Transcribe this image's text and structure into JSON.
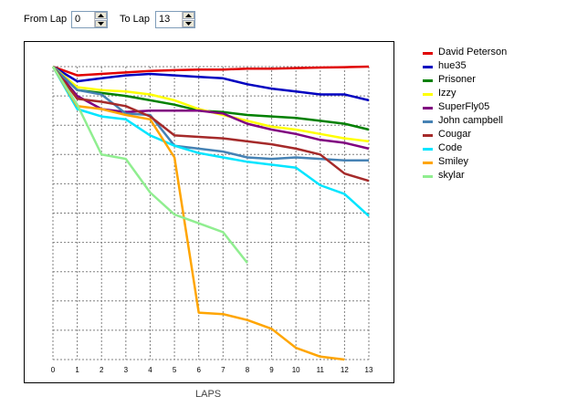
{
  "controls": {
    "from_label": "From Lap",
    "from_value": "0",
    "to_label": "To Lap",
    "to_value": "13"
  },
  "chart_data": {
    "type": "line",
    "xlabel": "LAPS",
    "ylabel": "",
    "title": "",
    "xlim": [
      0,
      13
    ],
    "ylim": [
      0,
      10
    ],
    "x_ticks": [
      "0",
      "1",
      "2",
      "3",
      "4",
      "5",
      "6",
      "7",
      "8",
      "9",
      "10",
      "11",
      "12",
      "13"
    ],
    "grid": true,
    "legend_position": "right",
    "series": [
      {
        "name": "David Peterson",
        "color": "#e00000",
        "x": [
          0,
          1,
          2,
          3,
          4,
          5,
          6,
          7,
          8,
          9,
          10,
          11,
          12,
          13
        ],
        "y": [
          10,
          9.7,
          9.75,
          9.8,
          9.85,
          9.88,
          9.9,
          9.9,
          9.93,
          9.93,
          9.95,
          9.97,
          9.98,
          10
        ]
      },
      {
        "name": "hue35",
        "color": "#0000c0",
        "x": [
          0,
          1,
          2,
          3,
          4,
          5,
          6,
          7,
          8,
          9,
          10,
          11,
          12,
          13
        ],
        "y": [
          10,
          9.5,
          9.6,
          9.7,
          9.75,
          9.7,
          9.65,
          9.6,
          9.4,
          9.25,
          9.15,
          9.05,
          9.05,
          8.85
        ]
      },
      {
        "name": "Prisoner",
        "color": "#008000",
        "x": [
          0,
          1,
          2,
          3,
          4,
          5,
          6,
          7,
          8,
          9,
          10,
          11,
          12,
          13
        ],
        "y": [
          10,
          9.2,
          9.1,
          9.0,
          8.85,
          8.7,
          8.5,
          8.45,
          8.35,
          8.3,
          8.25,
          8.15,
          8.05,
          7.85
        ]
      },
      {
        "name": "Izzy",
        "color": "#ffff00",
        "x": [
          0,
          1,
          2,
          3,
          4,
          5,
          6,
          7,
          8,
          9,
          10,
          11,
          12,
          13
        ],
        "y": [
          10,
          9.3,
          9.2,
          9.15,
          9.05,
          8.85,
          8.55,
          8.35,
          8.15,
          7.95,
          7.85,
          7.7,
          7.55,
          7.45
        ]
      },
      {
        "name": "SuperFly05",
        "color": "#800080",
        "x": [
          0,
          1,
          2,
          3,
          4,
          5,
          6,
          7,
          8,
          9,
          10,
          11,
          12,
          13
        ],
        "y": [
          10,
          9.0,
          8.55,
          8.45,
          8.5,
          8.5,
          8.5,
          8.4,
          8.05,
          7.85,
          7.7,
          7.5,
          7.4,
          7.2
        ]
      },
      {
        "name": "John campbell",
        "color": "#4682b4",
        "x": [
          0,
          1,
          2,
          3,
          4,
          5,
          6,
          7,
          8,
          9,
          10,
          11,
          12,
          13
        ],
        "y": [
          10,
          9.2,
          9.05,
          8.4,
          8.35,
          7.3,
          7.2,
          7.1,
          6.9,
          6.85,
          6.9,
          6.85,
          6.8,
          6.8
        ]
      },
      {
        "name": "Cougar",
        "color": "#a52a2a",
        "x": [
          0,
          1,
          2,
          3,
          4,
          5,
          6,
          7,
          8,
          9,
          10,
          11,
          12,
          13
        ],
        "y": [
          10,
          8.9,
          8.8,
          8.65,
          8.3,
          7.65,
          7.6,
          7.55,
          7.45,
          7.35,
          7.2,
          7.0,
          6.35,
          6.1
        ]
      },
      {
        "name": "Code",
        "color": "#00e5ff",
        "x": [
          0,
          1,
          2,
          3,
          4,
          5,
          6,
          7,
          8,
          9,
          10,
          11,
          12,
          13
        ],
        "y": [
          10,
          8.55,
          8.3,
          8.2,
          7.65,
          7.3,
          7.05,
          6.9,
          6.75,
          6.65,
          6.55,
          5.95,
          5.65,
          4.9
        ]
      },
      {
        "name": "Smiley",
        "color": "#ffa500",
        "x": [
          0,
          1,
          2,
          3,
          4,
          5,
          6,
          7,
          8,
          9,
          10,
          11,
          12
        ],
        "y": [
          10,
          8.65,
          8.55,
          8.35,
          8.2,
          6.9,
          1.6,
          1.55,
          1.35,
          1.05,
          0.4,
          0.1,
          0.0
        ]
      },
      {
        "name": "skylar",
        "color": "#90ee90",
        "x": [
          0,
          1,
          2,
          3,
          4,
          5,
          6,
          7,
          8
        ],
        "y": [
          10,
          8.7,
          7.0,
          6.85,
          5.7,
          4.95,
          4.65,
          4.35,
          3.3
        ]
      }
    ]
  }
}
